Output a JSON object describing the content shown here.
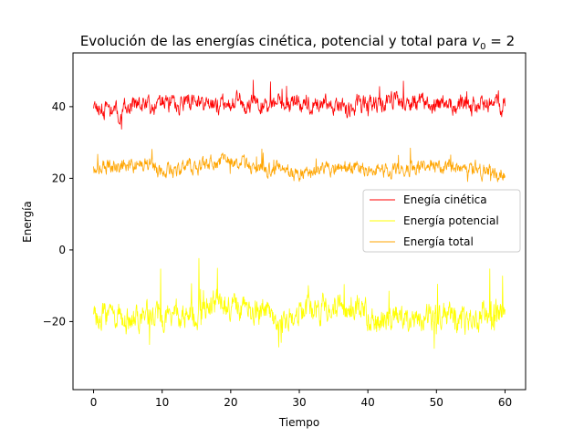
{
  "chart_data": {
    "type": "line",
    "title": "Evolución de las energías cinética, potencial y total para ",
    "title_math": {
      "var": "v",
      "sub": "0",
      "rest": " = 2"
    },
    "xlabel": "Tiempo",
    "ylabel": "Energía",
    "xlim": [
      -3,
      63
    ],
    "ylim": [
      -39,
      55
    ],
    "x_ticks": [
      0,
      10,
      20,
      30,
      40,
      50,
      60
    ],
    "y_ticks": [
      -20,
      0,
      20,
      40
    ],
    "y_tick_labels": [
      "−20",
      "0",
      "20",
      "40"
    ],
    "grid": false,
    "legend_position": "center-right",
    "x_range": [
      0,
      60
    ],
    "series": [
      {
        "name": "Enegía cinética",
        "color": "#ff0000",
        "mean": 40.5,
        "spread": 2.4,
        "spike": 5.5,
        "min": 33.5,
        "max": 49,
        "seed": 11
      },
      {
        "name": "Energía potencial",
        "color": "#ffff00",
        "mean": -17,
        "spread": 3.6,
        "spike": 14,
        "min": -35,
        "max": 8,
        "seed": 23
      },
      {
        "name": "Energía total",
        "color": "#ffa500",
        "mean": 23,
        "spread": 1.9,
        "spike": 4.5,
        "min": 15.5,
        "max": 33,
        "seed": 37
      }
    ]
  }
}
